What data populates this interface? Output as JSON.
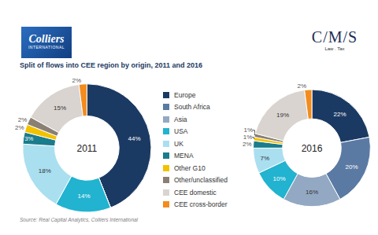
{
  "header": {
    "logo_left": "Colliers",
    "logo_left_sub": "INTERNATIONAL",
    "logo_right": "C/M/S",
    "logo_right_sub": "Law . Tax"
  },
  "title": "Split of flows into CEE region by origin, 2011 and 2016",
  "source": "Source: Real Capital Analytics, Colliers International",
  "chart_data": [
    {
      "type": "pie",
      "title": "2011",
      "categories": [
        "Europe",
        "South Africa",
        "Asia",
        "USA",
        "UK",
        "MENA",
        "Other G10",
        "Other/unclassified",
        "CEE domestic",
        "CEE cross-border"
      ],
      "values": [
        44,
        0,
        0,
        14,
        18,
        3,
        2,
        2,
        15,
        2
      ],
      "value_labels": [
        "44%",
        null,
        null,
        "14%",
        "18%",
        "3%",
        "2%",
        "2%",
        "15%",
        "2%"
      ],
      "colors": [
        "#1b3a63",
        "#5a7aa3",
        "#93a8c3",
        "#21b3d0",
        "#aadff0",
        "#1a7c8c",
        "#f2c200",
        "#8a7f73",
        "#d9d4cf",
        "#f28c1e"
      ],
      "data_labels": true
    },
    {
      "type": "pie",
      "title": "2016",
      "categories": [
        "Europe",
        "South Africa",
        "Asia",
        "USA",
        "UK",
        "MENA",
        "Other G10",
        "Other/unclassified",
        "CEE domestic",
        "CEE cross-border"
      ],
      "values": [
        22,
        20,
        16,
        10,
        7,
        2,
        1,
        1,
        19,
        2
      ],
      "value_labels": [
        "22%",
        "20%",
        "16%",
        "10%",
        "7%",
        "2%",
        "1%",
        "1%",
        "19%",
        "2%"
      ],
      "colors": [
        "#1b3a63",
        "#5a7aa3",
        "#93a8c3",
        "#21b3d0",
        "#aadff0",
        "#1a7c8c",
        "#f2c200",
        "#8a7f73",
        "#d9d4cf",
        "#f28c1e"
      ],
      "data_labels": true
    }
  ]
}
